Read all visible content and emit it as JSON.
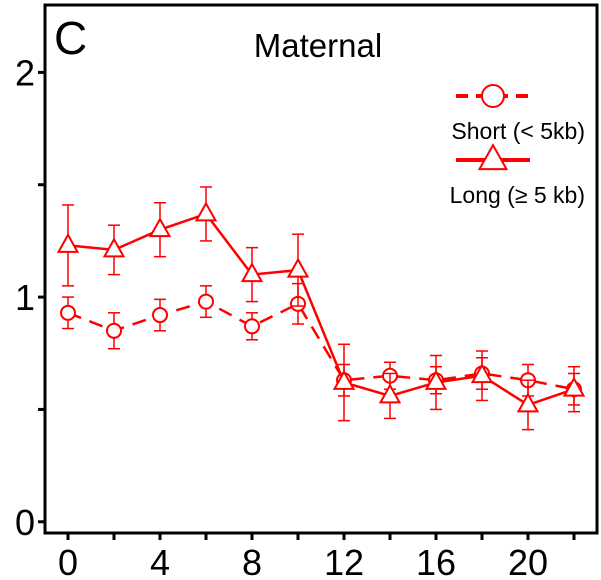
{
  "panel_label": "C",
  "chart_data": {
    "type": "line",
    "title": "Maternal",
    "xlabel": "",
    "ylabel": "",
    "xlim": [
      -1,
      23
    ],
    "ylim": [
      -0.05,
      2.3
    ],
    "x_ticks": [
      0,
      4,
      8,
      12,
      16,
      20
    ],
    "x_minor_ticks": [
      2,
      6,
      10,
      14,
      18,
      22
    ],
    "y_ticks": [
      0,
      1,
      2
    ],
    "y_minor_ticks": [
      0.5,
      1.5
    ],
    "legend_position": "top-right",
    "grid": false,
    "color": "#ff0000",
    "series": [
      {
        "name": "Short (< 5kb)",
        "marker": "circle",
        "line_style": "dashed",
        "x": [
          0,
          2,
          4,
          6,
          8,
          10,
          12,
          14,
          16,
          18,
          20,
          22
        ],
        "y": [
          0.93,
          0.85,
          0.92,
          0.98,
          0.87,
          0.97,
          0.63,
          0.65,
          0.63,
          0.66,
          0.63,
          0.59
        ],
        "error": [
          0.07,
          0.08,
          0.07,
          0.07,
          0.06,
          0.09,
          0.07,
          0.06,
          0.06,
          0.07,
          0.07,
          0.07
        ]
      },
      {
        "name": "Long (≥ 5 kb)",
        "marker": "triangle",
        "line_style": "solid",
        "x": [
          0,
          2,
          4,
          6,
          8,
          10,
          12,
          14,
          16,
          18,
          20,
          22
        ],
        "y": [
          1.23,
          1.21,
          1.3,
          1.37,
          1.1,
          1.12,
          0.62,
          0.56,
          0.62,
          0.65,
          0.52,
          0.59
        ],
        "error": [
          0.18,
          0.11,
          0.12,
          0.12,
          0.12,
          0.16,
          0.17,
          0.1,
          0.12,
          0.11,
          0.11,
          0.1
        ]
      }
    ]
  }
}
